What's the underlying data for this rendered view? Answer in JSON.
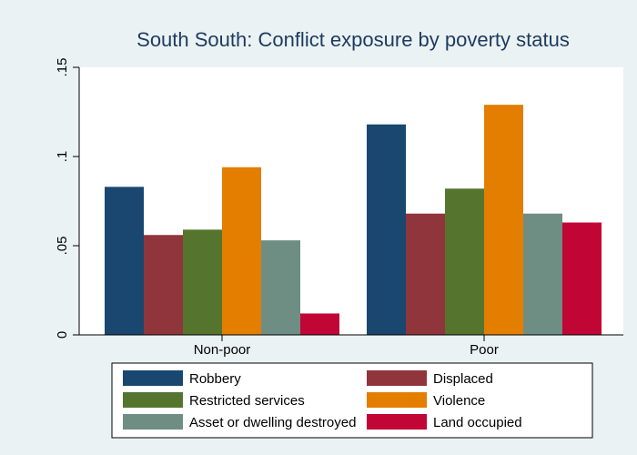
{
  "chart_data": {
    "type": "bar",
    "title": "South South: Conflict exposure by poverty status",
    "categories": [
      "Non-poor",
      "Poor"
    ],
    "ylim": [
      0,
      0.15
    ],
    "yticks": [
      0,
      0.05,
      0.1,
      0.15
    ],
    "ytick_labels": [
      "0",
      ".05",
      ".1",
      ".15"
    ],
    "grid": false,
    "legend_position": "bottom",
    "series": [
      {
        "name": "Robbery",
        "color": "#1a476f",
        "values": [
          0.083,
          0.118
        ]
      },
      {
        "name": "Displaced",
        "color": "#90353b",
        "values": [
          0.056,
          0.068
        ]
      },
      {
        "name": "Restricted services",
        "color": "#55752f",
        "values": [
          0.059,
          0.082
        ]
      },
      {
        "name": "Violence",
        "color": "#e37e00",
        "values": [
          0.094,
          0.129
        ]
      },
      {
        "name": "Asset or dwelling destroyed",
        "color": "#6e8e84",
        "values": [
          0.053,
          0.068
        ]
      },
      {
        "name": "Land occupied",
        "color": "#c10534",
        "values": [
          0.012,
          0.063
        ]
      }
    ]
  }
}
